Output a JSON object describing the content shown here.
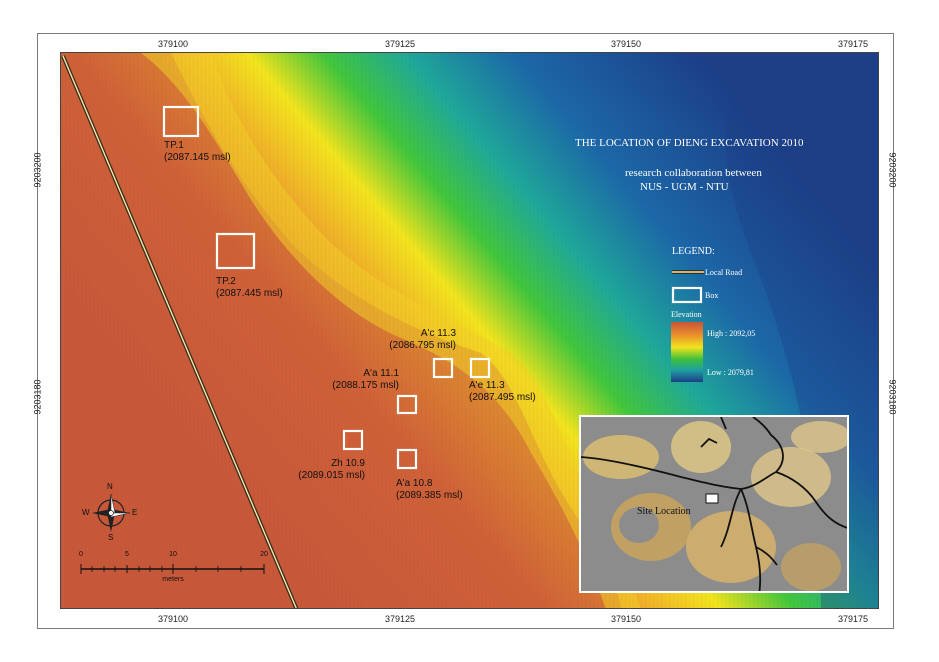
{
  "title": {
    "line1": "THE LOCATION OF DIENG EXCAVATION 2010",
    "line2": "research collaboration between",
    "line3": "NUS - UGM - NTU"
  },
  "axes": {
    "x_ticks": [
      "379100",
      "379125",
      "379150",
      "379175"
    ],
    "y_ticks": [
      "9203200",
      "9203180"
    ]
  },
  "legend": {
    "heading": "LEGEND:",
    "road_label": "Local Road",
    "box_label": "Box",
    "elevation_label": "Elevation",
    "high_label": "High : 2092,05",
    "low_label": "Low : 2079,81",
    "colors": {
      "high": "#c8553a",
      "mid": "#f2e41e",
      "green": "#3fbf3a",
      "low": "#1c3f88"
    }
  },
  "excavation_boxes": [
    {
      "name": "TP.1",
      "elevation": "(2087.145 msl)"
    },
    {
      "name": "TP.2",
      "elevation": "(2087.445 msl)"
    },
    {
      "name": "A'c 11.3",
      "elevation": "(2086.795 msl)"
    },
    {
      "name": "A'a 11.1",
      "elevation": "(2088.175 msl)"
    },
    {
      "name": "A'e 11.3",
      "elevation": "(2087.495 msl)"
    },
    {
      "name": "Zh 10.9",
      "elevation": "(2089.015 msl)"
    },
    {
      "name": "A'a 10.8",
      "elevation": "(2089.385 msl)"
    }
  ],
  "compass": {
    "n": "N",
    "s": "S",
    "e": "E",
    "w": "W"
  },
  "scale_bar": {
    "ticks": [
      "0",
      "5",
      "10",
      "20"
    ],
    "unit": "meters"
  },
  "inset": {
    "label": "Site Location"
  }
}
